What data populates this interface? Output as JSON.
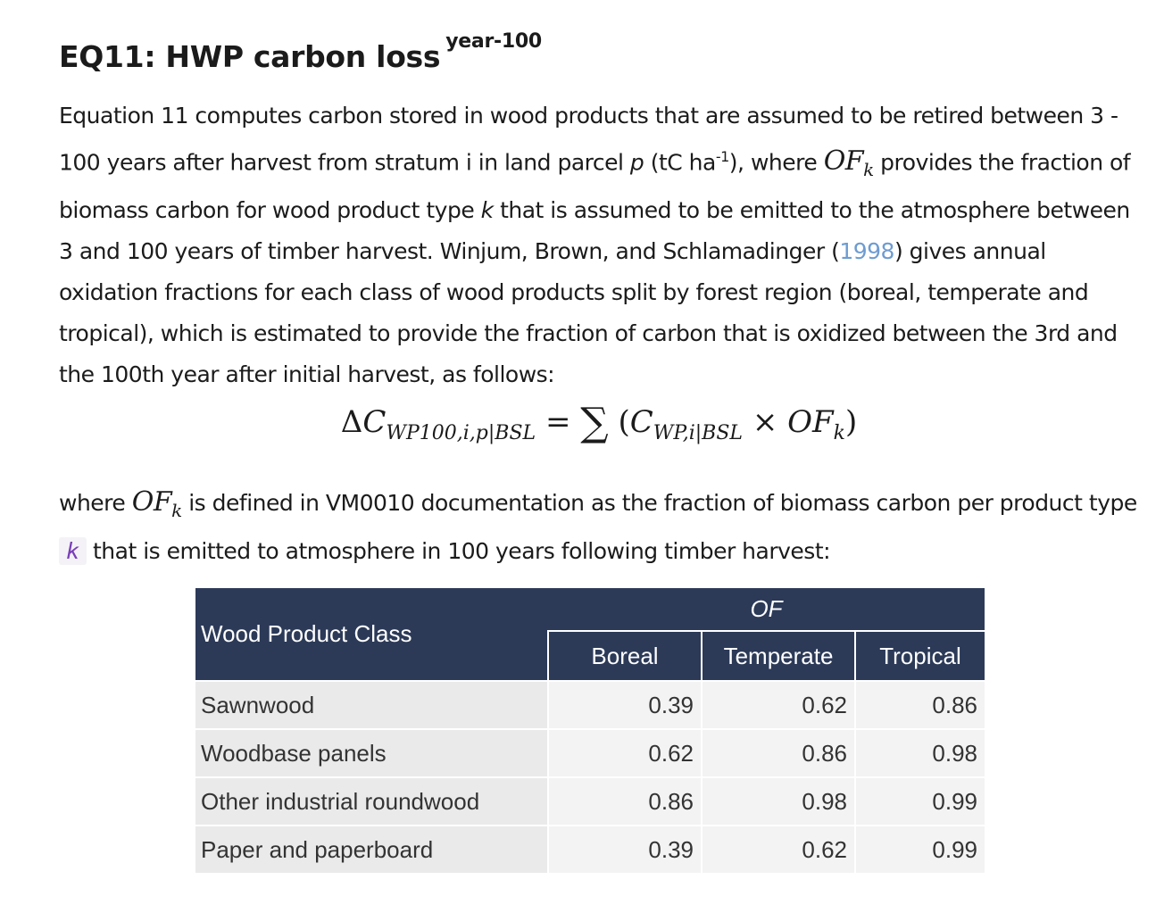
{
  "heading": {
    "main": "EQ11: HWP carbon loss",
    "sup": "year-100"
  },
  "para1": {
    "t1": "Equation 11 computes carbon stored in wood products that are assumed to be retired between 3 - 100 years after harvest from stratum i in land parcel ",
    "p": "p",
    "t2": " (tC ha",
    "sup": "-1",
    "t3": "), where ",
    "of": "OF",
    "of_sub": "k",
    "t4": " provides the fraction of biomass carbon for wood product type ",
    "k": "k",
    "t5": " that is assumed to be emitted to the atmosphere between 3 and 100 years of timber harvest. Winjum, Brown, and Schlamadinger (",
    "cite": "1998",
    "t6": ") gives annual oxidation fractions for each class of wood products split by forest region (boreal, temperate and tropical), which is estimated to provide the fraction of carbon that is oxidized between the 3rd and the 100th year after initial harvest, as follows:"
  },
  "equation": {
    "delta": "Δ",
    "c1": "C",
    "c1_sub": "WP100,i,p|BSL",
    "eq": " = ",
    "sigma": "∑",
    "open": " (",
    "c2": "C",
    "c2_sub": "WP,i|BSL",
    "times": " × ",
    "of": "OF",
    "of_sub": "k",
    "close": ")"
  },
  "para2": {
    "t1": "where ",
    "of": "OF",
    "of_sub": "k",
    "t2": " is defined in VM0010 documentation as the fraction of biomass carbon per product type ",
    "k": "k",
    "t3": " that is emitted to atmosphere in 100 years following timber harvest:"
  },
  "table": {
    "class_header": "Wood Product Class",
    "group_header": "OF",
    "columns": [
      "Boreal",
      "Temperate",
      "Tropical"
    ],
    "rows": [
      {
        "label": "Sawnwood",
        "values": [
          "0.39",
          "0.62",
          "0.86"
        ]
      },
      {
        "label": "Woodbase panels",
        "values": [
          "0.62",
          "0.86",
          "0.98"
        ]
      },
      {
        "label": "Other industrial roundwood",
        "values": [
          "0.86",
          "0.98",
          "0.99"
        ]
      },
      {
        "label": "Paper and paperboard",
        "values": [
          "0.39",
          "0.62",
          "0.99"
        ]
      }
    ]
  },
  "colors": {
    "table_header": "#2c3a58",
    "link": "#6e9cd1",
    "code_k": "#7a3fb8"
  }
}
